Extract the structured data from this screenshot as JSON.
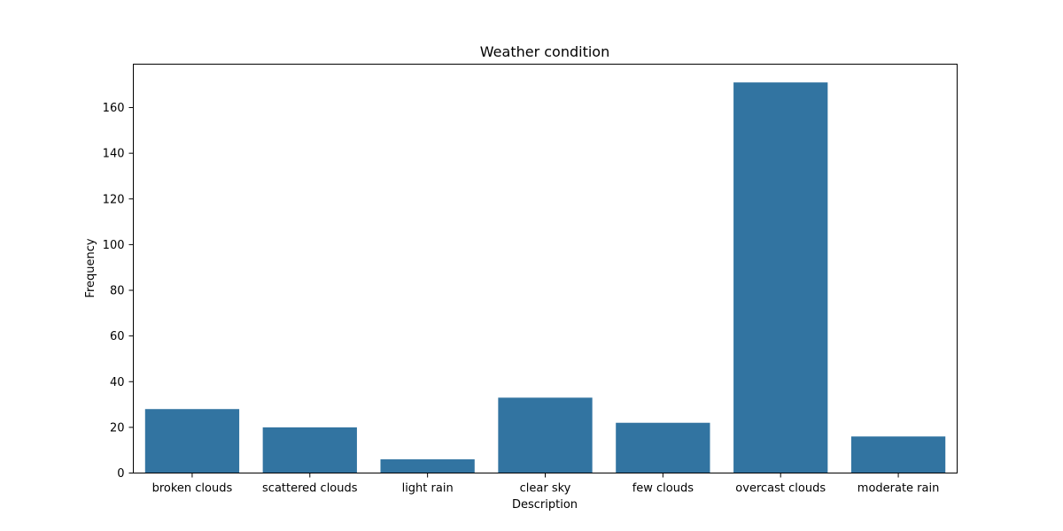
{
  "chart_data": {
    "type": "bar",
    "title": "Weather condition",
    "xlabel": "Description",
    "ylabel": "Frequency",
    "categories": [
      "broken clouds",
      "scattered clouds",
      "light rain",
      "clear sky",
      "few clouds",
      "overcast clouds",
      "moderate rain"
    ],
    "values": [
      28,
      20,
      6,
      33,
      22,
      171,
      16
    ],
    "ylim": [
      0,
      179
    ],
    "yticks": [
      0,
      20,
      40,
      60,
      80,
      100,
      120,
      140,
      160
    ],
    "grid": false,
    "legend": "none",
    "colors": {
      "bar": "#3274a1",
      "axis": "#000000",
      "background": "#ffffff"
    }
  }
}
